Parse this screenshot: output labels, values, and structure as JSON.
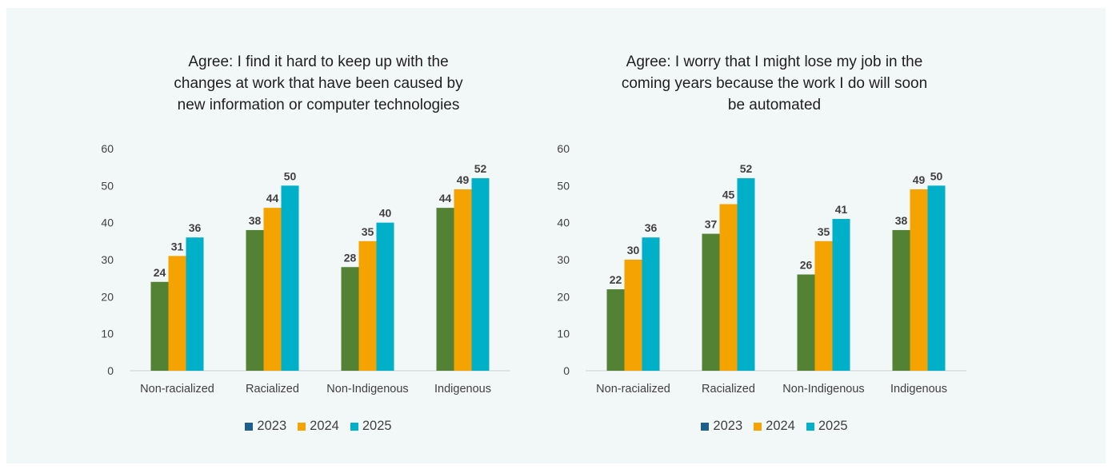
{
  "colors": {
    "legend_2023": "#1f5f8b",
    "series_2023": "#548235",
    "series_2024": "#f4a300",
    "series_2025": "#00b0c8",
    "axis": "#d0d0d0",
    "background": "#f2f8f7"
  },
  "legend": [
    "2023",
    "2024",
    "2025"
  ],
  "chart_data": [
    {
      "type": "bar",
      "title": "Agree: I find it hard to keep up with the\nchanges at work that have been caused by\nnew information or computer technologies",
      "categories": [
        "Non-racialized",
        "Racialized",
        "Non-Indigenous",
        "Indigenous"
      ],
      "series": [
        {
          "name": "2023",
          "values": [
            24,
            38,
            28,
            44
          ]
        },
        {
          "name": "2024",
          "values": [
            31,
            44,
            35,
            49
          ]
        },
        {
          "name": "2025",
          "values": [
            36,
            50,
            40,
            52
          ]
        }
      ],
      "ylim": [
        0,
        60
      ],
      "yticks": [
        0,
        10,
        20,
        30,
        40,
        50,
        60
      ],
      "grid": false,
      "legend_position": "bottom"
    },
    {
      "type": "bar",
      "title": "Agree: I worry that I might lose my job in the\ncoming years because the work I do will soon\nbe automated",
      "categories": [
        "Non-racialized",
        "Racialized",
        "Non-Indigenous",
        "Indigenous"
      ],
      "series": [
        {
          "name": "2023",
          "values": [
            22,
            37,
            26,
            38
          ]
        },
        {
          "name": "2024",
          "values": [
            30,
            45,
            35,
            49
          ]
        },
        {
          "name": "2025",
          "values": [
            36,
            52,
            41,
            50
          ]
        }
      ],
      "ylim": [
        0,
        60
      ],
      "yticks": [
        0,
        10,
        20,
        30,
        40,
        50,
        60
      ],
      "grid": false,
      "legend_position": "bottom"
    }
  ]
}
